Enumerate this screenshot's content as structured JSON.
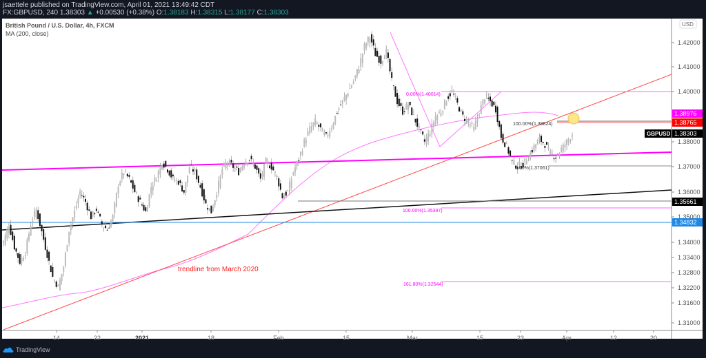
{
  "header": {
    "line1": "jsaettele published on TradingView.com, April 01, 2021 13:49:42 CDT",
    "symbol": "FX:GBPUSD, 240",
    "last": "1.38303",
    "change": "+0.00530 (+0.38%)",
    "open_label": "O:",
    "open": "1.38183",
    "high_label": "H:",
    "high": "1.38315",
    "low_label": "L:",
    "low": "1.38177",
    "close_label": "C:",
    "close": "1.38303"
  },
  "legend": {
    "title": "British Pound / U.S. Dollar, 4h, FXCM",
    "indicator": "MA (200, close)"
  },
  "footer": {
    "brand": "TradingView"
  },
  "chart_data": {
    "type": "candlestick",
    "title": "British Pound / U.S. Dollar, 4h, FXCM",
    "currency": "USD",
    "x_ticks": [
      "14",
      "22",
      "2021",
      "18",
      "Feb",
      "15",
      "Mar",
      "15",
      "23",
      "Apr",
      "12",
      "20"
    ],
    "y_ticks": [
      "1.42000",
      "1.41000",
      "1.40000",
      "1.38000",
      "1.37000",
      "1.36000",
      "1.35000",
      "1.34000",
      "1.33400",
      "1.32800",
      "1.32200",
      "1.31600",
      "1.31000"
    ],
    "ylim": [
      1.307,
      1.432
    ],
    "price_labels": [
      {
        "value": "1.38976",
        "color": "#ff00ff",
        "text_color": "#ffffff"
      },
      {
        "value": "1.38765",
        "color": "#ff0000",
        "text_color": "#ffffff"
      },
      {
        "value": "1.38303",
        "color": "#000000",
        "text_color": "#ffffff",
        "tag": "GBPUSD"
      },
      {
        "value": "1.35661",
        "color": "#000000",
        "text_color": "#ffffff"
      },
      {
        "value": "1.34832",
        "color": "#1e88e5",
        "text_color": "#ffffff"
      }
    ],
    "fib_labels": [
      {
        "text": "0.00%(1.40014)",
        "color": "#ff00ff"
      },
      {
        "text": "100.00%(1.35397)",
        "color": "#ff00ff"
      },
      {
        "text": "161.80%(1.32544)",
        "color": "#ff00ff"
      },
      {
        "text": "100.00%(1.38824)",
        "color": "#333333"
      },
      {
        "text": "0.00%(1.37061)",
        "color": "#333333"
      }
    ],
    "annotations": [
      {
        "text": "trendline from March 2020",
        "color": "#ff0000"
      }
    ],
    "lines": [
      {
        "name": "magenta horizontal channel",
        "color": "#ff00ff"
      },
      {
        "name": "black rising trendline",
        "color": "#000000"
      },
      {
        "name": "red trendline from March 2020",
        "color": "#ff3b30"
      },
      {
        "name": "blue horizontal 1.34832",
        "color": "#1e88e5"
      },
      {
        "name": "MA 200",
        "color": "#ff66ff"
      }
    ],
    "approx_closes": [
      1.34,
      1.347,
      1.338,
      1.332,
      1.336,
      1.347,
      1.353,
      1.344,
      1.335,
      1.326,
      1.322,
      1.33,
      1.345,
      1.352,
      1.36,
      1.356,
      1.35,
      1.353,
      1.347,
      1.345,
      1.35,
      1.363,
      1.368,
      1.365,
      1.36,
      1.356,
      1.352,
      1.362,
      1.366,
      1.372,
      1.369,
      1.365,
      1.364,
      1.36,
      1.37,
      1.368,
      1.362,
      1.355,
      1.352,
      1.36,
      1.369,
      1.372,
      1.37,
      1.368,
      1.372,
      1.373,
      1.37,
      1.365,
      1.372,
      1.37,
      1.366,
      1.358,
      1.36,
      1.368,
      1.373,
      1.38,
      1.385,
      1.388,
      1.385,
      1.382,
      1.386,
      1.392,
      1.396,
      1.4,
      1.404,
      1.41,
      1.418,
      1.422,
      1.415,
      1.412,
      1.416,
      1.404,
      1.396,
      1.392,
      1.395,
      1.39,
      1.385,
      1.38,
      1.384,
      1.39,
      1.392,
      1.397,
      1.4,
      1.395,
      1.39,
      1.388,
      1.385,
      1.392,
      1.398,
      1.396,
      1.393,
      1.382,
      1.378,
      1.372,
      1.37,
      1.371,
      1.374,
      1.378,
      1.381,
      1.379,
      1.375,
      1.374,
      1.377,
      1.38,
      1.383
    ]
  }
}
